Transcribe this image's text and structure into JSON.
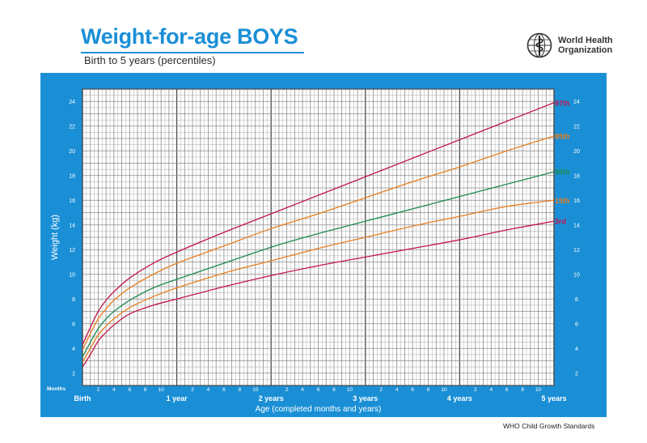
{
  "header": {
    "title": "Weight-for-age BOYS",
    "subtitle": "Birth to 5 years (percentiles)",
    "org_line1": "World Health",
    "org_line2": "Organization",
    "logo_icon": "who-emblem-icon"
  },
  "footer": {
    "text": "WHO Child Growth Standards"
  },
  "colors": {
    "frame": "#1a8fd6",
    "grid_minor": "#8c8c8c",
    "grid_major": "#4a4a4a",
    "p97": "#c4164b",
    "p85": "#e97d1f",
    "p50": "#1d8a4f",
    "p15": "#e97d1f",
    "p3": "#c4164b"
  },
  "chart_data": {
    "type": "line",
    "title": "Weight-for-age BOYS",
    "subtitle": "Birth to 5 years (percentiles)",
    "xlabel": "Age (completed months and years)",
    "ylabel": "Weight (kg)",
    "xlim": [
      0,
      60
    ],
    "ylim": [
      1,
      25
    ],
    "x_unit": "months",
    "x_tick_months_label": "Months",
    "x_minor_ticks": [
      {
        "m": 2,
        "label": "2"
      },
      {
        "m": 4,
        "label": "4"
      },
      {
        "m": 6,
        "label": "6"
      },
      {
        "m": 8,
        "label": "8"
      },
      {
        "m": 10,
        "label": "10"
      },
      {
        "m": 14,
        "label": "2"
      },
      {
        "m": 16,
        "label": "4"
      },
      {
        "m": 18,
        "label": "6"
      },
      {
        "m": 20,
        "label": "8"
      },
      {
        "m": 22,
        "label": "10"
      },
      {
        "m": 26,
        "label": "2"
      },
      {
        "m": 28,
        "label": "4"
      },
      {
        "m": 30,
        "label": "6"
      },
      {
        "m": 32,
        "label": "8"
      },
      {
        "m": 34,
        "label": "10"
      },
      {
        "m": 38,
        "label": "2"
      },
      {
        "m": 40,
        "label": "4"
      },
      {
        "m": 42,
        "label": "6"
      },
      {
        "m": 44,
        "label": "8"
      },
      {
        "m": 46,
        "label": "10"
      },
      {
        "m": 50,
        "label": "2"
      },
      {
        "m": 52,
        "label": "4"
      },
      {
        "m": 54,
        "label": "6"
      },
      {
        "m": 56,
        "label": "8"
      },
      {
        "m": 58,
        "label": "10"
      }
    ],
    "x_year_ticks": [
      {
        "m": 0,
        "label": "Birth"
      },
      {
        "m": 12,
        "label": "1 year"
      },
      {
        "m": 24,
        "label": "2 years"
      },
      {
        "m": 36,
        "label": "3 years"
      },
      {
        "m": 48,
        "label": "4 years"
      },
      {
        "m": 60,
        "label": "5 years"
      }
    ],
    "y_ticks": [
      2,
      4,
      6,
      8,
      10,
      12,
      14,
      16,
      18,
      20,
      22,
      24
    ],
    "grid": true,
    "series": [
      {
        "name": "97th",
        "color_key": "p97",
        "x": [
          0,
          1,
          2,
          3,
          4,
          6,
          9,
          12,
          18,
          24,
          30,
          36,
          42,
          48,
          54,
          60
        ],
        "y": [
          4.3,
          5.7,
          7.0,
          7.9,
          8.6,
          9.7,
          10.9,
          11.8,
          13.4,
          14.9,
          16.4,
          17.9,
          19.4,
          20.9,
          22.4,
          23.9
        ]
      },
      {
        "name": "85th",
        "color_key": "p85",
        "x": [
          0,
          1,
          2,
          3,
          4,
          6,
          9,
          12,
          18,
          24,
          30,
          36,
          42,
          48,
          54,
          60
        ],
        "y": [
          3.9,
          5.2,
          6.4,
          7.2,
          7.9,
          8.9,
          10.0,
          10.9,
          12.3,
          13.7,
          14.9,
          16.2,
          17.5,
          18.7,
          20.0,
          21.2
        ]
      },
      {
        "name": "50th",
        "color_key": "p50",
        "x": [
          0,
          1,
          2,
          3,
          4,
          6,
          9,
          12,
          18,
          24,
          30,
          36,
          42,
          48,
          54,
          60
        ],
        "y": [
          3.3,
          4.5,
          5.6,
          6.4,
          7.0,
          7.9,
          8.9,
          9.6,
          10.9,
          12.2,
          13.3,
          14.3,
          15.3,
          16.3,
          17.3,
          18.3
        ]
      },
      {
        "name": "15th",
        "color_key": "p15",
        "x": [
          0,
          1,
          2,
          3,
          4,
          6,
          9,
          12,
          18,
          24,
          30,
          36,
          42,
          48,
          54,
          60
        ],
        "y": [
          2.9,
          4.0,
          5.1,
          5.8,
          6.4,
          7.3,
          8.2,
          8.9,
          10.1,
          11.1,
          12.1,
          13.0,
          13.9,
          14.7,
          15.5,
          16.0
        ]
      },
      {
        "name": "3rd",
        "color_key": "p3",
        "x": [
          0,
          1,
          2,
          3,
          4,
          6,
          9,
          12,
          18,
          24,
          30,
          36,
          42,
          48,
          54,
          60
        ],
        "y": [
          2.5,
          3.5,
          4.6,
          5.3,
          5.9,
          6.8,
          7.5,
          8.0,
          9.0,
          9.9,
          10.7,
          11.4,
          12.1,
          12.8,
          13.6,
          14.3
        ]
      }
    ]
  }
}
